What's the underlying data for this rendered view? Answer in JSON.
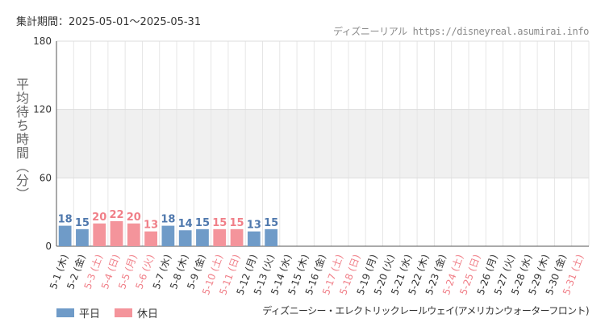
{
  "header": {
    "period": "集計期間：2025-05-01～2025-05-31",
    "site": "ディズニーリアル https://disneyreal.asumirai.info"
  },
  "chart_data": {
    "type": "bar",
    "ylabel": "平均待ち時間（分）",
    "ylim": [
      0,
      180
    ],
    "yticks": [
      0,
      60,
      120,
      180
    ],
    "grid": true,
    "categories": [
      "5-1 (木)",
      "5-2 (金)",
      "5-3 (土)",
      "5-4 (日)",
      "5-5 (月)",
      "5-6 (火)",
      "5-7 (水)",
      "5-8 (木)",
      "5-9 (金)",
      "5-10 (土)",
      "5-11 (日)",
      "5-12 (月)",
      "5-13 (火)",
      "5-14 (水)",
      "5-15 (木)",
      "5-16 (金)",
      "5-17 (土)",
      "5-18 (日)",
      "5-19 (月)",
      "5-20 (火)",
      "5-21 (水)",
      "5-22 (木)",
      "5-23 (金)",
      "5-24 (土)",
      "5-25 (日)",
      "5-26 (月)",
      "5-27 (火)",
      "5-28 (水)",
      "5-29 (木)",
      "5-30 (金)",
      "5-31 (土)"
    ],
    "day_type": [
      "weekday",
      "weekday",
      "holiday",
      "holiday",
      "holiday",
      "holiday",
      "weekday",
      "weekday",
      "weekday",
      "holiday",
      "holiday",
      "weekday",
      "weekday",
      "weekday",
      "weekday",
      "weekday",
      "holiday",
      "holiday",
      "weekday",
      "weekday",
      "weekday",
      "weekday",
      "weekday",
      "holiday",
      "holiday",
      "weekday",
      "weekday",
      "weekday",
      "weekday",
      "weekday",
      "holiday"
    ],
    "values": [
      18,
      15,
      20,
      22,
      20,
      13,
      18,
      14,
      15,
      15,
      15,
      13,
      15,
      null,
      null,
      null,
      null,
      null,
      null,
      null,
      null,
      null,
      null,
      null,
      null,
      null,
      null,
      null,
      null,
      null,
      null
    ],
    "legend": [
      {
        "name": "平日",
        "color": "#6f9bc8"
      },
      {
        "name": "休日",
        "color": "#f4949b"
      }
    ],
    "colors": {
      "weekday_bar": "#6f9bc8",
      "holiday_bar": "#f4949b",
      "weekday_text": "#4f78ad",
      "holiday_text": "#f07f88"
    }
  },
  "footer": {
    "attraction": "ディズニーシー・エレクトリックレールウェイ(アメリカンウォーターフロント)"
  }
}
